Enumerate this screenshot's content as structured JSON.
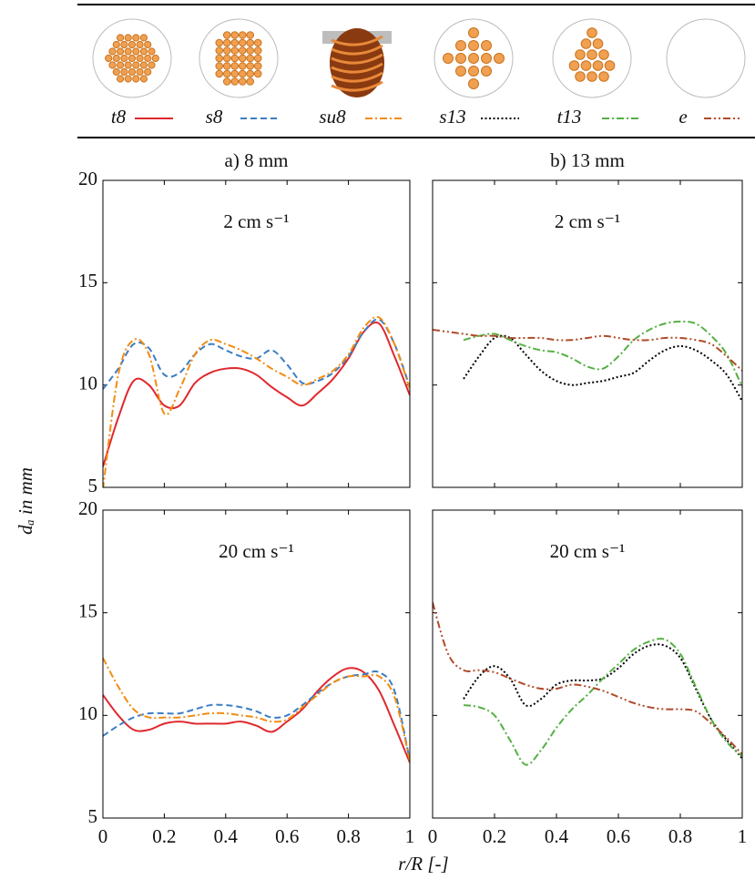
{
  "xlabel": "r/R [-]",
  "ylabel": "dₐ in mm",
  "chart_data": [
    {
      "type": "line",
      "title": "a) 8 mm",
      "annotation": "2 cm s⁻¹",
      "x": [
        0,
        0.05,
        0.1,
        0.15,
        0.2,
        0.25,
        0.3,
        0.35,
        0.4,
        0.45,
        0.5,
        0.55,
        0.6,
        0.65,
        0.7,
        0.75,
        0.8,
        0.85,
        0.9,
        0.95,
        1
      ],
      "xlim": [
        0,
        1
      ],
      "xticks": [
        0,
        0.2,
        0.4,
        0.6,
        0.8,
        1
      ],
      "xtick_labels": false,
      "ylim": [
        5,
        20
      ],
      "yticks": [
        5,
        10,
        15,
        20
      ],
      "ytick_labels": true,
      "series": [
        {
          "name": "t8",
          "color": "#e0282e",
          "dash": "solid",
          "values": [
            6.0,
            8.4,
            10.2,
            10.0,
            9.0,
            9.0,
            10.1,
            10.6,
            10.8,
            10.8,
            10.5,
            9.9,
            9.4,
            9.0,
            9.6,
            10.3,
            11.3,
            12.6,
            13.0,
            11.4,
            9.5
          ]
        },
        {
          "name": "s8",
          "color": "#3b7dc4",
          "dash": "dashed",
          "values": [
            9.8,
            10.8,
            12.0,
            11.8,
            10.5,
            10.6,
            11.5,
            12.0,
            11.7,
            11.4,
            11.3,
            11.7,
            11.0,
            10.1,
            10.2,
            10.6,
            11.4,
            12.6,
            13.2,
            12.0,
            9.9
          ]
        },
        {
          "name": "su8",
          "color": "#f28c12",
          "dash": "dashdot",
          "values": [
            4.9,
            10.5,
            12.2,
            11.5,
            8.6,
            9.8,
            11.5,
            12.2,
            12.0,
            11.7,
            11.3,
            10.8,
            10.4,
            10.0,
            10.3,
            10.7,
            11.5,
            12.8,
            13.3,
            12.0,
            9.8
          ]
        }
      ]
    },
    {
      "type": "line",
      "title": "b) 13 mm",
      "annotation": "2 cm s⁻¹",
      "x": [
        0,
        0.05,
        0.1,
        0.15,
        0.2,
        0.25,
        0.3,
        0.35,
        0.4,
        0.45,
        0.5,
        0.55,
        0.6,
        0.65,
        0.7,
        0.75,
        0.8,
        0.85,
        0.9,
        0.95,
        1
      ],
      "xlim": [
        0,
        1
      ],
      "xticks": [
        0,
        0.2,
        0.4,
        0.6,
        0.8,
        1
      ],
      "xtick_labels": false,
      "ylim": [
        5,
        20
      ],
      "yticks": [
        5,
        10,
        15,
        20
      ],
      "ytick_labels": false,
      "series": [
        {
          "name": "s13",
          "color": "#000000",
          "dash": "dotted",
          "values": [
            null,
            null,
            10.3,
            11.4,
            12.3,
            12.3,
            11.5,
            10.7,
            10.2,
            10.0,
            10.1,
            10.2,
            10.4,
            10.6,
            11.2,
            11.7,
            11.9,
            11.7,
            11.2,
            10.5,
            9.2
          ]
        },
        {
          "name": "t13",
          "color": "#55b043",
          "dash": "dashdot",
          "values": [
            null,
            null,
            12.2,
            12.4,
            12.5,
            12.2,
            11.9,
            11.7,
            11.6,
            11.3,
            10.9,
            10.8,
            11.4,
            12.2,
            12.7,
            13.0,
            13.1,
            13.0,
            12.4,
            11.5,
            9.9
          ]
        },
        {
          "name": "e",
          "color": "#b04a2a",
          "dash": "dashdotdot",
          "values": [
            12.7,
            12.6,
            12.5,
            12.4,
            12.4,
            12.3,
            12.3,
            12.3,
            12.2,
            12.2,
            12.3,
            12.4,
            12.3,
            12.2,
            12.2,
            12.3,
            12.3,
            12.2,
            12.0,
            11.4,
            10.7
          ]
        }
      ]
    },
    {
      "type": "line",
      "annotation": "20 cm s⁻¹",
      "x": [
        0,
        0.05,
        0.1,
        0.15,
        0.2,
        0.25,
        0.3,
        0.35,
        0.4,
        0.45,
        0.5,
        0.55,
        0.6,
        0.65,
        0.7,
        0.75,
        0.8,
        0.85,
        0.9,
        0.95,
        1
      ],
      "xlim": [
        0,
        1
      ],
      "xticks": [
        0,
        0.2,
        0.4,
        0.6,
        0.8,
        1
      ],
      "xtick_labels": true,
      "ylim": [
        5,
        20
      ],
      "yticks": [
        5,
        10,
        15,
        20
      ],
      "ytick_labels": true,
      "series": [
        {
          "name": "t8",
          "color": "#e0282e",
          "dash": "solid",
          "values": [
            11.0,
            10.0,
            9.3,
            9.3,
            9.6,
            9.7,
            9.6,
            9.6,
            9.6,
            9.7,
            9.5,
            9.2,
            9.7,
            10.3,
            11.2,
            11.9,
            12.3,
            12.1,
            11.2,
            9.5,
            7.7
          ]
        },
        {
          "name": "s8",
          "color": "#3b7dc4",
          "dash": "dashed",
          "values": [
            9.0,
            9.5,
            9.9,
            10.1,
            10.1,
            10.1,
            10.3,
            10.5,
            10.5,
            10.4,
            10.2,
            9.9,
            10.0,
            10.5,
            11.1,
            11.6,
            11.9,
            12.0,
            12.1,
            11.2,
            7.8
          ]
        },
        {
          "name": "su8",
          "color": "#f28c12",
          "dash": "dashdot",
          "values": [
            12.8,
            11.4,
            10.3,
            9.9,
            9.9,
            9.9,
            10.0,
            10.1,
            10.1,
            10.0,
            9.9,
            9.7,
            9.8,
            10.4,
            11.0,
            11.6,
            11.9,
            11.9,
            11.9,
            10.9,
            7.8
          ]
        }
      ]
    },
    {
      "type": "line",
      "annotation": "20 cm s⁻¹",
      "x": [
        0,
        0.05,
        0.1,
        0.15,
        0.2,
        0.25,
        0.3,
        0.35,
        0.4,
        0.45,
        0.5,
        0.55,
        0.6,
        0.65,
        0.7,
        0.75,
        0.8,
        0.85,
        0.9,
        0.95,
        1
      ],
      "xlim": [
        0,
        1
      ],
      "xticks": [
        0,
        0.2,
        0.4,
        0.6,
        0.8,
        1
      ],
      "xtick_labels": true,
      "ylim": [
        5,
        20
      ],
      "yticks": [
        5,
        10,
        15,
        20
      ],
      "ytick_labels": false,
      "series": [
        {
          "name": "s13",
          "color": "#000000",
          "dash": "dotted",
          "values": [
            null,
            null,
            10.8,
            11.9,
            12.4,
            11.8,
            10.5,
            10.8,
            11.5,
            11.7,
            11.7,
            11.8,
            12.3,
            13.0,
            13.4,
            13.4,
            12.8,
            11.3,
            9.8,
            8.8,
            7.9
          ]
        },
        {
          "name": "t13",
          "color": "#55b043",
          "dash": "dashdot",
          "values": [
            null,
            null,
            10.5,
            10.4,
            10.0,
            8.8,
            7.6,
            8.3,
            9.4,
            10.3,
            11.0,
            11.8,
            12.5,
            13.2,
            13.6,
            13.7,
            13.0,
            11.4,
            9.8,
            8.7,
            8.0
          ]
        },
        {
          "name": "e",
          "color": "#b04a2a",
          "dash": "dashdotdot",
          "values": [
            15.5,
            13.0,
            12.2,
            12.2,
            12.1,
            11.8,
            11.5,
            11.3,
            11.3,
            11.5,
            11.4,
            11.2,
            10.9,
            10.6,
            10.4,
            10.3,
            10.3,
            10.2,
            9.6,
            8.9,
            8.1
          ]
        }
      ]
    }
  ]
}
